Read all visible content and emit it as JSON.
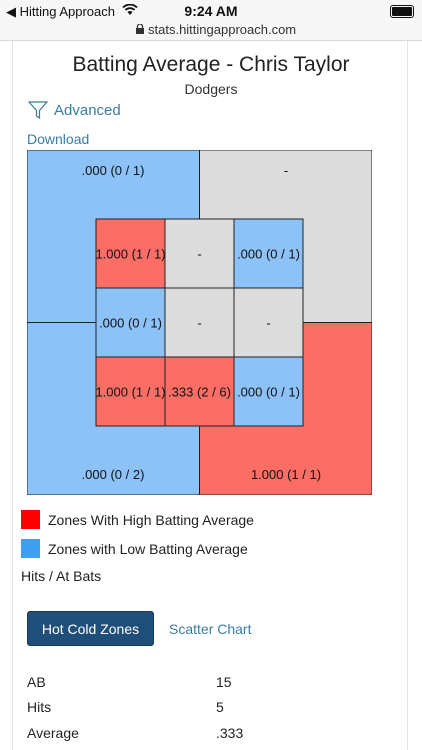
{
  "status_bar": {
    "back_app": "Hitting Approach",
    "time": "9:24 AM"
  },
  "url_bar": {
    "url": "stats.hittingapproach.com"
  },
  "header": {
    "title": "Batting Average - Chris Taylor",
    "team": "Dodgers"
  },
  "advanced_label": "Advanced",
  "download_label": "Download",
  "colors": {
    "hot": "#fa6e66",
    "cold": "#8cc2f8",
    "neutral": "#dcdcdc",
    "accent": "#3a7ca5",
    "button": "#1f4e79"
  },
  "chart_data": {
    "type": "heatmap",
    "outer_zones": {
      "top_left": ".000 (0 / 1)",
      "top_right": "-",
      "bottom_left": ".000 (0 / 2)",
      "bottom_right": "1.000 (1 / 1)"
    },
    "inner_grid": [
      [
        "1.000 (1 / 1)",
        "-",
        ".000 (0 / 1)"
      ],
      [
        ".000 (0 / 1)",
        "-",
        "-"
      ],
      [
        "1.000 (1 / 1)",
        ".333 (2 / 6)",
        ".000 (0 / 1)"
      ]
    ],
    "outer_heat": {
      "top_left": "cold",
      "top_right": "neutral",
      "bottom_left": "cold",
      "bottom_right": "hot"
    },
    "inner_heat": [
      [
        "hot",
        "neutral",
        "cold"
      ],
      [
        "cold",
        "neutral",
        "neutral"
      ],
      [
        "hot",
        "hot",
        "cold"
      ]
    ]
  },
  "legend": {
    "high": "Zones With High Batting Average",
    "low": "Zones with Low Batting Average",
    "note": "Hits / At Bats"
  },
  "buttons": {
    "hot_cold": "Hot Cold Zones",
    "scatter": "Scatter Chart"
  },
  "stats": [
    {
      "label": "AB",
      "value": "15"
    },
    {
      "label": "Hits",
      "value": "5"
    },
    {
      "label": "Average",
      "value": ".333"
    }
  ]
}
